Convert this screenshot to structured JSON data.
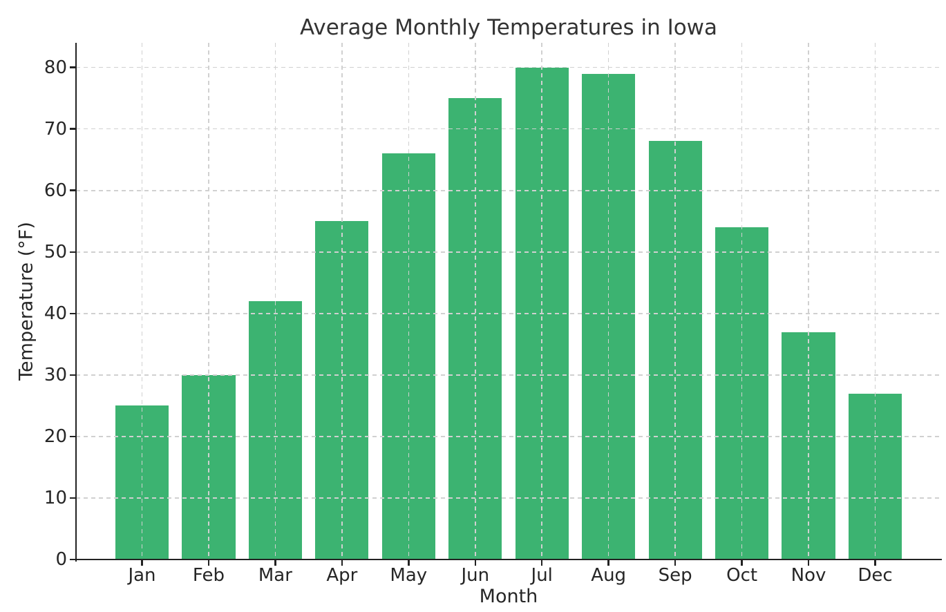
{
  "chart_data": {
    "type": "bar",
    "title": "Average Monthly Temperatures in Iowa",
    "xlabel": "Month",
    "ylabel": "Temperature (°F)",
    "categories": [
      "Jan",
      "Feb",
      "Mar",
      "Apr",
      "May",
      "Jun",
      "Jul",
      "Aug",
      "Sep",
      "Oct",
      "Nov",
      "Dec"
    ],
    "values": [
      25,
      30,
      42,
      55,
      66,
      75,
      80,
      79,
      68,
      54,
      37,
      27
    ],
    "yticks": [
      0,
      10,
      20,
      30,
      40,
      50,
      60,
      70,
      80
    ],
    "ylim": [
      0,
      84
    ],
    "bar_color": "#3cb371",
    "grid": {
      "style": "dashed",
      "color": "#d0d0d0",
      "horizontal": true,
      "vertical": true,
      "above_bars": true
    },
    "legend": "none",
    "background": "#ffffff"
  }
}
